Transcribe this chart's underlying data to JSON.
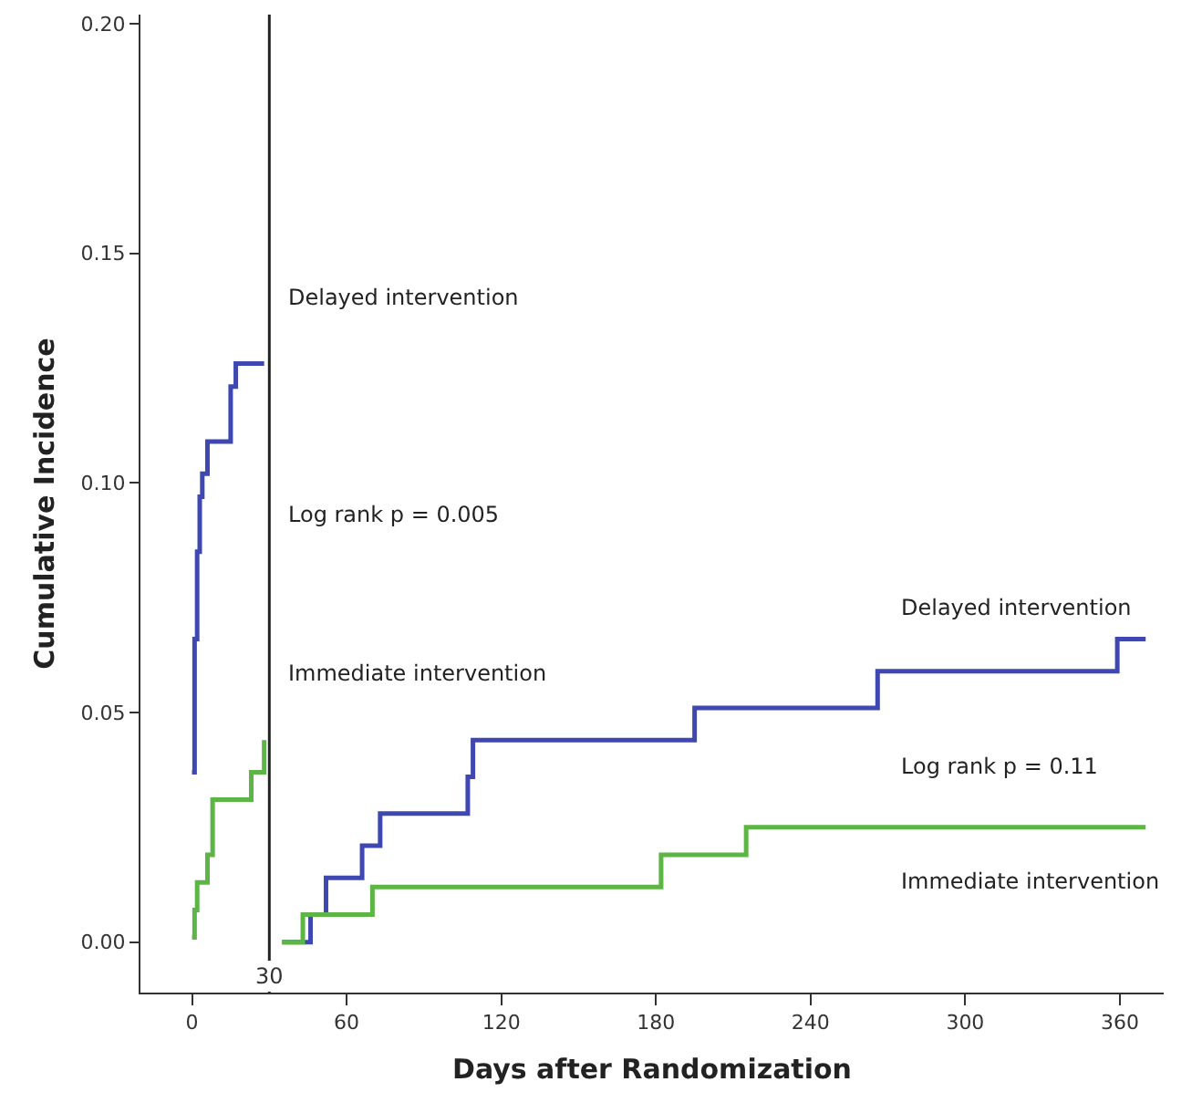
{
  "chart_data": {
    "type": "step",
    "xlabel": "Days after Randomization",
    "ylabel": "Cumulative Incidence",
    "xlim": [
      -20,
      377
    ],
    "xticks": [
      0,
      60,
      120,
      180,
      240,
      300,
      360
    ],
    "ylim": [
      -0.011,
      0.202
    ],
    "yticks": [
      {
        "value": 0,
        "label": "0.00"
      },
      {
        "value": 0.05,
        "label": "0.05"
      },
      {
        "value": 0.1,
        "label": "0.10"
      },
      {
        "value": 0.15,
        "label": "0.15"
      },
      {
        "value": 0.2,
        "label": "0.20"
      }
    ],
    "series": [
      {
        "color": "#3f48b0",
        "x": [
          0,
          1,
          2,
          3,
          4,
          6,
          15,
          17,
          28
        ],
        "values": [
          0.037,
          0.066,
          0.085,
          0.097,
          0.102,
          0.109,
          0.121,
          0.126,
          0.126
        ]
      },
      {
        "color": "#5cb545",
        "x": [
          0,
          1,
          2,
          6,
          8,
          23,
          28
        ],
        "values": [
          0.001,
          0.007,
          0.013,
          0.019,
          0.031,
          0.037,
          0.044
        ]
      },
      {
        "color": "#3f48b0",
        "x": [
          35,
          46,
          52,
          66,
          73,
          107,
          109,
          195,
          266,
          359,
          370
        ],
        "values": [
          0,
          0.006,
          0.014,
          0.021,
          0.028,
          0.036,
          0.044,
          0.051,
          0.059,
          0.066,
          0.066
        ]
      },
      {
        "color": "#5cb545",
        "x": [
          35,
          43,
          70,
          182,
          215,
          370
        ],
        "values": [
          0,
          0.006,
          0.012,
          0.019,
          0.025,
          0.025
        ]
      }
    ],
    "ref_lines": [
      {
        "axis": "x",
        "value": 30,
        "label": "30",
        "color": "#222222"
      }
    ],
    "annotations": [
      "Delayed intervention",
      "Log rank p = 0.005",
      "Immediate intervention",
      "Delayed intervention",
      "Log rank p = 0.11",
      "Immediate intervention"
    ]
  }
}
